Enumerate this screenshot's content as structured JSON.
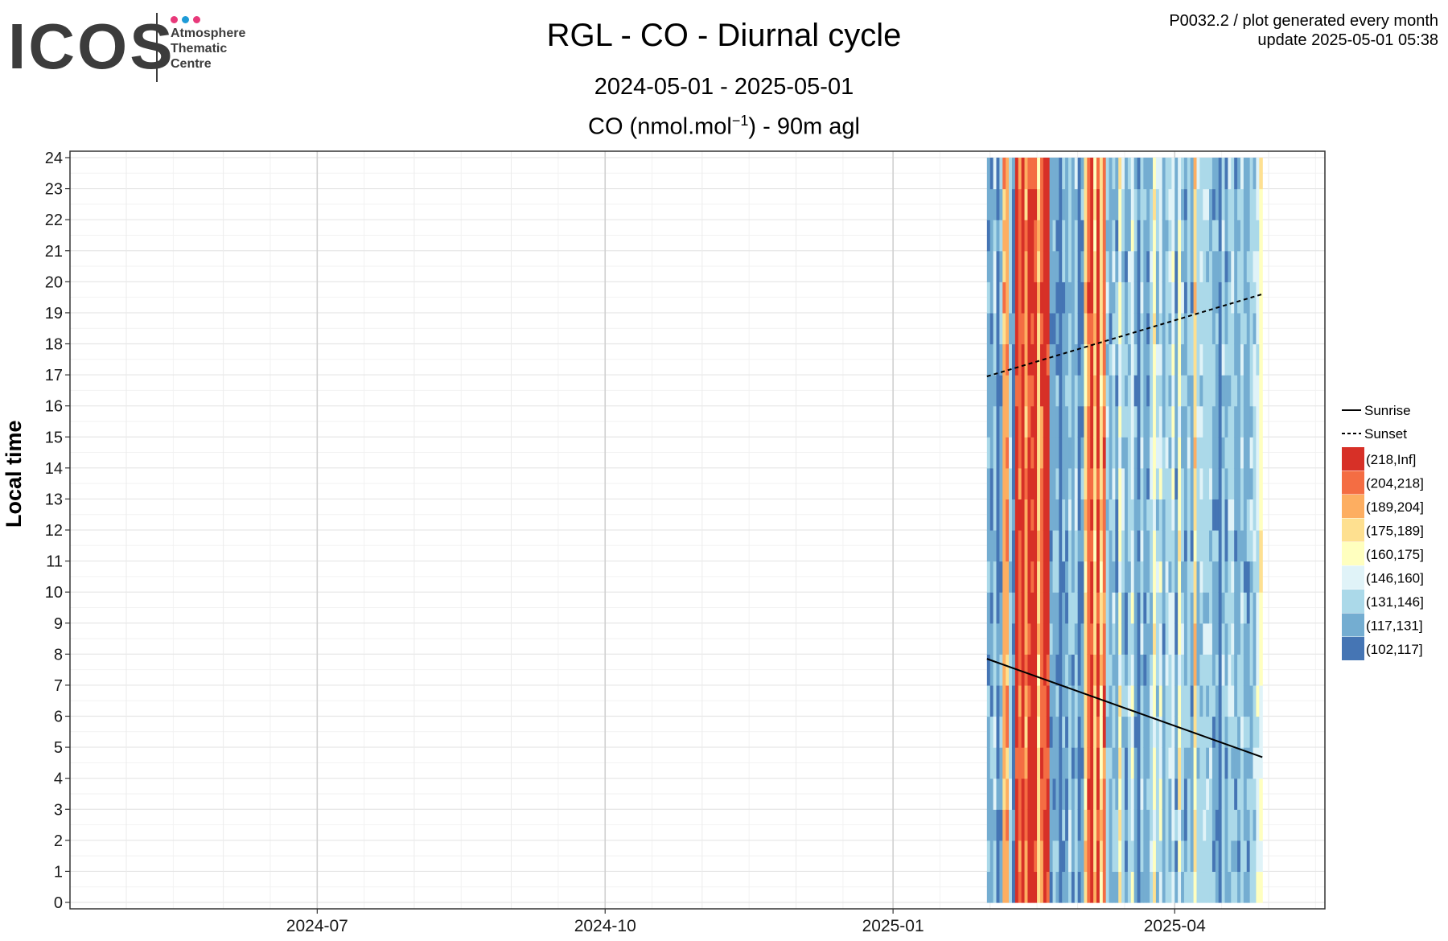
{
  "logo": {
    "wordmark": "ICOS",
    "lines": [
      "Atmosphere",
      "Thematic",
      "Centre"
    ],
    "dot_colors": [
      "#e8397a",
      "#1e9bd7",
      "#e8397a"
    ]
  },
  "header": {
    "title": "RGL - CO - Diurnal cycle",
    "date_range": "2024-05-01 - 2025-05-01",
    "quantity_prefix": "CO (nmol.mol",
    "quantity_exp": "−1",
    "quantity_suffix": ") - 90m agl",
    "meta_line1": "P0032.2 / plot generated every month",
    "meta_line2": "update  2025-05-01 05:38"
  },
  "chart_data": {
    "type": "heatmap",
    "title": "RGL - CO - Diurnal cycle",
    "ylabel": "Local time",
    "x_range": [
      "2024-05-01",
      "2025-05-01"
    ],
    "x_ticks": [
      "2024-07",
      "2024-10",
      "2025-01",
      "2025-04"
    ],
    "x_tick_dates": [
      "2024-07-01",
      "2024-10-01",
      "2025-01-01",
      "2025-04-01"
    ],
    "y_ticks": [
      0,
      1,
      2,
      3,
      4,
      5,
      6,
      7,
      8,
      9,
      10,
      11,
      12,
      13,
      14,
      15,
      16,
      17,
      18,
      19,
      20,
      21,
      22,
      23,
      24
    ],
    "ylim": [
      0,
      24
    ],
    "data_start": "2025-01-31",
    "data_end": "2025-04-29",
    "grid": true,
    "legend_position": "right",
    "bins": [
      {
        "label": "(218,Inf]",
        "color": "#d73027"
      },
      {
        "label": "(204,218]",
        "color": "#f46d43"
      },
      {
        "label": "(189,204]",
        "color": "#fdae61"
      },
      {
        "label": "(175,189]",
        "color": "#fee090"
      },
      {
        "label": "(160,175]",
        "color": "#ffffbf"
      },
      {
        "label": "(146,160]",
        "color": "#e0f3f8"
      },
      {
        "label": "(131,146]",
        "color": "#abd9e9"
      },
      {
        "label": "(117,131]",
        "color": "#74add1"
      },
      {
        "label": "(102,117]",
        "color": "#4575b4"
      }
    ],
    "day_bins": [
      7,
      7,
      6,
      8,
      7,
      2,
      2,
      6,
      8,
      0,
      1,
      0,
      2,
      0,
      0,
      0,
      3,
      1,
      0,
      0,
      7,
      7,
      7,
      8,
      7,
      7,
      6,
      7,
      6,
      8,
      7,
      3,
      1,
      0,
      3,
      0,
      3,
      1,
      6,
      7,
      6,
      7,
      4,
      6,
      7,
      6,
      5,
      7,
      8,
      6,
      7,
      7,
      6,
      4,
      6,
      5,
      7,
      6,
      6,
      5,
      7,
      4,
      6,
      7,
      6,
      7,
      3,
      6,
      6,
      6,
      6,
      6,
      7,
      7,
      8,
      6,
      7,
      6,
      6,
      7,
      7,
      6,
      7,
      7,
      6,
      6,
      5,
      4
    ],
    "lines": [
      {
        "name": "Sunrise",
        "style": "solid",
        "start": [
          "2025-01-31",
          7.85
        ],
        "end": [
          "2025-04-29",
          4.68
        ]
      },
      {
        "name": "Sunset",
        "style": "dashed",
        "start": [
          "2025-01-31",
          16.95
        ],
        "end": [
          "2025-04-29",
          19.6
        ]
      }
    ]
  }
}
